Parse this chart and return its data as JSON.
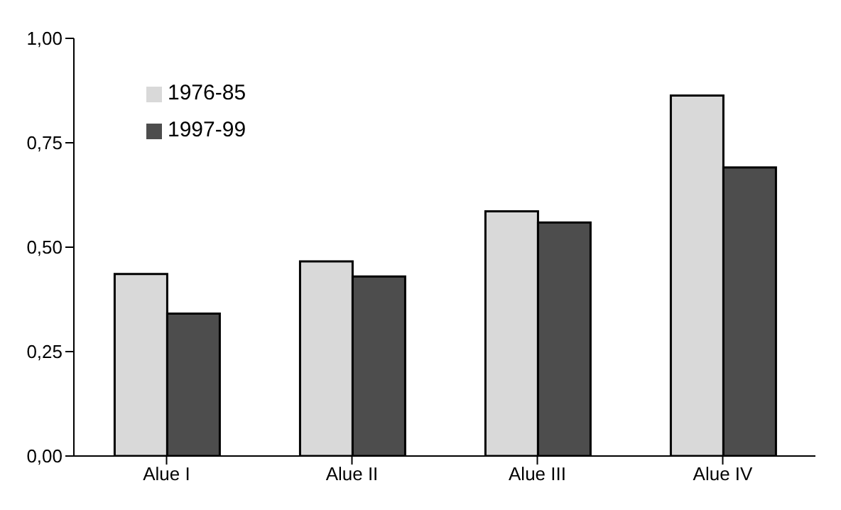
{
  "chart_data": {
    "type": "bar",
    "categories": [
      "Alue I",
      "Alue II",
      "Alue III",
      "Alue IV"
    ],
    "series": [
      {
        "name": "1976-85",
        "color": "#d9d9d9",
        "values": [
          0.436,
          0.466,
          0.586,
          0.863
        ]
      },
      {
        "name": "1997-99",
        "color": "#4d4d4d",
        "values": [
          0.341,
          0.43,
          0.559,
          0.691
        ]
      }
    ],
    "ylim": [
      0,
      1
    ],
    "yticks": [
      {
        "value": 0,
        "label": "0,00"
      },
      {
        "value": 0.25,
        "label": "0,25"
      },
      {
        "value": 0.5,
        "label": "0,50"
      },
      {
        "value": 0.75,
        "label": "0,75"
      },
      {
        "value": 1,
        "label": "1,00"
      }
    ],
    "grid": false,
    "legend": "top left"
  }
}
